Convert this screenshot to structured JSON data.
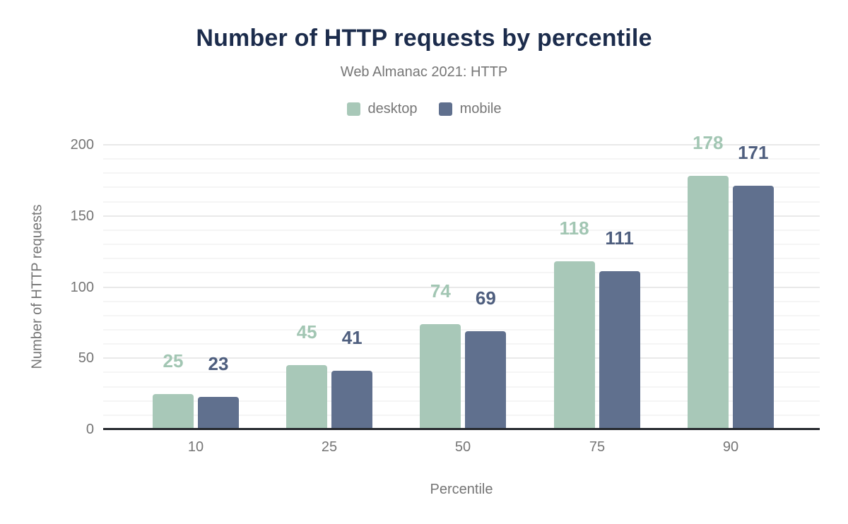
{
  "chart_data": {
    "type": "bar",
    "title": "Number of HTTP requests by percentile",
    "subtitle": "Web Almanac 2021: HTTP",
    "xlabel": "Percentile",
    "ylabel": "Number of HTTP requests",
    "categories": [
      "10",
      "25",
      "50",
      "75",
      "90"
    ],
    "series": [
      {
        "name": "desktop",
        "color": "#a8c8b8",
        "label_color": "#a2c6b3",
        "values": [
          25,
          45,
          74,
          118,
          178
        ]
      },
      {
        "name": "mobile",
        "color": "#60708e",
        "label_color": "#4e5e7e",
        "values": [
          23,
          41,
          69,
          111,
          171
        ]
      }
    ],
    "ylim": [
      0,
      200
    ],
    "yticks": [
      0,
      50,
      100,
      150,
      200
    ],
    "minor_tick_step": 10,
    "grid": true,
    "legend_position": "top",
    "colors": {
      "title_text": "#1c2c4c",
      "muted_text": "#757575",
      "axis_line": "#25282d",
      "major_grid": "#e9e9e9",
      "minor_grid": "#f5f5f5",
      "background": "#ffffff"
    }
  }
}
